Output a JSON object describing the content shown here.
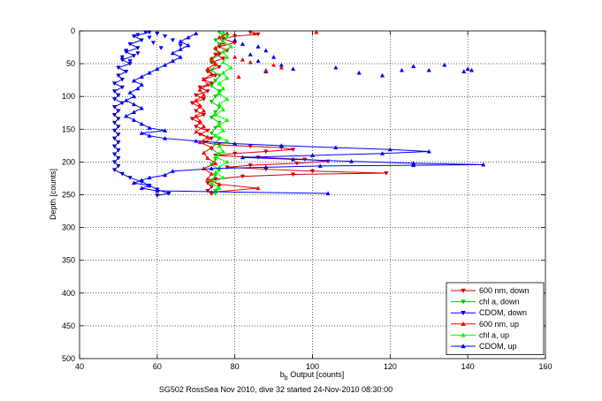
{
  "chart_data": {
    "type": "line",
    "title": "",
    "xlabel_main": "b",
    "xlabel_sub": "b",
    "xlabel_rest": " Output [counts]",
    "ylabel": "Depth [counts]",
    "caption": "SG502 RossSea Nov 2010, dive 32 started 24-Nov-2010 08:30:00",
    "xlim": [
      40,
      160
    ],
    "ylim": [
      0,
      500
    ],
    "y_reversed": true,
    "xticks": [
      40,
      60,
      80,
      100,
      120,
      140,
      160
    ],
    "yticks": [
      0,
      50,
      100,
      150,
      200,
      250,
      300,
      350,
      400,
      450,
      500
    ],
    "grid": true,
    "legend_position": "bottom-right",
    "colors": {
      "red": "#ff0000",
      "green": "#00ff00",
      "blue": "#0000ff"
    },
    "series": [
      {
        "name": "600 nm, down",
        "color": "#cc0000",
        "marker": "triangle-down",
        "points": [
          [
            84,
            2
          ],
          [
            86,
            5
          ],
          [
            80,
            8
          ],
          [
            77,
            12
          ],
          [
            80,
            18
          ],
          [
            76,
            24
          ],
          [
            78,
            30
          ],
          [
            75,
            36
          ],
          [
            77,
            42
          ],
          [
            74,
            48
          ],
          [
            76,
            55
          ],
          [
            73,
            62
          ],
          [
            75,
            68
          ],
          [
            72,
            74
          ],
          [
            74,
            80
          ],
          [
            71,
            86
          ],
          [
            73,
            92
          ],
          [
            70,
            98
          ],
          [
            72,
            104
          ],
          [
            69,
            110
          ],
          [
            71,
            116
          ],
          [
            70,
            122
          ],
          [
            72,
            128
          ],
          [
            69,
            134
          ],
          [
            71,
            140
          ],
          [
            70,
            146
          ],
          [
            73,
            152
          ],
          [
            71,
            158
          ],
          [
            74,
            164
          ],
          [
            72,
            170
          ],
          [
            76,
            174
          ],
          [
            84,
            176
          ],
          [
            92,
            178
          ],
          [
            95,
            181
          ],
          [
            88,
            184
          ],
          [
            80,
            187
          ],
          [
            75,
            190
          ],
          [
            86,
            193
          ],
          [
            98,
            196
          ],
          [
            104,
            199
          ],
          [
            96,
            202
          ],
          [
            84,
            205
          ],
          [
            78,
            208
          ],
          [
            88,
            211
          ],
          [
            100,
            214
          ],
          [
            119,
            217
          ],
          [
            95,
            219
          ],
          [
            82,
            222
          ],
          [
            75,
            226
          ],
          [
            73,
            232
          ],
          [
            74,
            238
          ],
          [
            73,
            244
          ],
          [
            74,
            248
          ]
        ]
      },
      {
        "name": "chl a, down",
        "color": "#00cc00",
        "marker": "triangle-down",
        "points": [
          [
            76,
            2
          ],
          [
            77,
            8
          ],
          [
            75,
            14
          ],
          [
            76,
            20
          ],
          [
            75,
            28
          ],
          [
            76,
            36
          ],
          [
            74,
            44
          ],
          [
            75,
            52
          ],
          [
            74,
            60
          ],
          [
            76,
            68
          ],
          [
            75,
            76
          ],
          [
            74,
            84
          ],
          [
            76,
            92
          ],
          [
            75,
            100
          ],
          [
            74,
            108
          ],
          [
            76,
            116
          ],
          [
            75,
            124
          ],
          [
            74,
            132
          ],
          [
            76,
            140
          ],
          [
            75,
            148
          ],
          [
            74,
            156
          ],
          [
            76,
            164
          ],
          [
            75,
            172
          ],
          [
            74,
            180
          ],
          [
            76,
            188
          ],
          [
            75,
            196
          ],
          [
            74,
            204
          ],
          [
            76,
            212
          ],
          [
            75,
            220
          ],
          [
            74,
            228
          ],
          [
            76,
            236
          ],
          [
            75,
            244
          ],
          [
            75,
            248
          ]
        ]
      },
      {
        "name": "CDOM, down",
        "color": "#0000cc",
        "marker": "triangle-down",
        "points": [
          [
            58,
            2
          ],
          [
            54,
            8
          ],
          [
            56,
            14
          ],
          [
            53,
            20
          ],
          [
            55,
            26
          ],
          [
            52,
            32
          ],
          [
            54,
            38
          ],
          [
            51,
            44
          ],
          [
            53,
            50
          ],
          [
            50,
            56
          ],
          [
            52,
            62
          ],
          [
            50,
            68
          ],
          [
            51,
            74
          ],
          [
            49,
            80
          ],
          [
            51,
            86
          ],
          [
            49,
            92
          ],
          [
            50,
            98
          ],
          [
            49,
            104
          ],
          [
            51,
            110
          ],
          [
            49,
            116
          ],
          [
            50,
            122
          ],
          [
            49,
            128
          ],
          [
            50,
            134
          ],
          [
            49,
            140
          ],
          [
            50,
            146
          ],
          [
            49,
            152
          ],
          [
            50,
            158
          ],
          [
            49,
            164
          ],
          [
            50,
            170
          ],
          [
            49,
            176
          ],
          [
            50,
            182
          ],
          [
            49,
            188
          ],
          [
            50,
            194
          ],
          [
            49,
            200
          ],
          [
            50,
            206
          ],
          [
            49,
            212
          ],
          [
            51,
            218
          ],
          [
            53,
            224
          ],
          [
            56,
            230
          ],
          [
            58,
            236
          ],
          [
            60,
            242
          ],
          [
            63,
            248
          ],
          [
            60,
            251
          ]
        ]
      },
      {
        "name": "600 nm, up",
        "color": "#ff0000",
        "marker": "triangle-up",
        "points": [
          [
            74,
            246
          ],
          [
            86,
            240
          ],
          [
            76,
            234
          ],
          [
            73,
            226
          ],
          [
            74,
            218
          ],
          [
            72,
            210
          ],
          [
            75,
            202
          ],
          [
            73,
            194
          ],
          [
            72,
            186
          ],
          [
            74,
            178
          ],
          [
            71,
            170
          ],
          [
            73,
            162
          ],
          [
            70,
            154
          ],
          [
            72,
            146
          ],
          [
            71,
            138
          ],
          [
            70,
            130
          ],
          [
            72,
            122
          ],
          [
            71,
            114
          ],
          [
            70,
            106
          ],
          [
            72,
            98
          ],
          [
            71,
            90
          ],
          [
            73,
            82
          ],
          [
            72,
            74
          ],
          [
            74,
            66
          ],
          [
            73,
            58
          ],
          [
            75,
            50
          ],
          [
            74,
            42
          ],
          [
            76,
            34
          ],
          [
            75,
            26
          ],
          [
            77,
            18
          ],
          [
            76,
            10
          ],
          [
            78,
            4
          ]
        ]
      },
      {
        "name": "chl a, up",
        "color": "#00ff00",
        "marker": "triangle-up",
        "points": [
          [
            75,
            246
          ],
          [
            76,
            240
          ],
          [
            74,
            232
          ],
          [
            77,
            224
          ],
          [
            75,
            216
          ],
          [
            76,
            208
          ],
          [
            78,
            200
          ],
          [
            75,
            192
          ],
          [
            77,
            184
          ],
          [
            76,
            176
          ],
          [
            78,
            168
          ],
          [
            75,
            160
          ],
          [
            77,
            152
          ],
          [
            76,
            144
          ],
          [
            78,
            136
          ],
          [
            75,
            128
          ],
          [
            77,
            120
          ],
          [
            76,
            112
          ],
          [
            78,
            104
          ],
          [
            76,
            96
          ],
          [
            77,
            88
          ],
          [
            76,
            80
          ],
          [
            78,
            72
          ],
          [
            77,
            64
          ],
          [
            79,
            56
          ],
          [
            77,
            48
          ],
          [
            78,
            40
          ],
          [
            77,
            32
          ],
          [
            79,
            24
          ],
          [
            77,
            16
          ],
          [
            78,
            8
          ],
          [
            77,
            2
          ]
        ]
      },
      {
        "name": "CDOM, up",
        "color": "#0000ff",
        "marker": "triangle-up",
        "points": [
          [
            104,
            248
          ],
          [
            60,
            244
          ],
          [
            56,
            240
          ],
          [
            58,
            236
          ],
          [
            54,
            232
          ],
          [
            56,
            228
          ],
          [
            58,
            224
          ],
          [
            62,
            220
          ],
          [
            64,
            214
          ],
          [
            74,
            210
          ],
          [
            88,
            208
          ],
          [
            102,
            206
          ],
          [
            126,
            205
          ],
          [
            144,
            204
          ],
          [
            126,
            202
          ],
          [
            110,
            199
          ],
          [
            95,
            196
          ],
          [
            82,
            193
          ],
          [
            100,
            190
          ],
          [
            118,
            187
          ],
          [
            130,
            184
          ],
          [
            120,
            181
          ],
          [
            106,
            178
          ],
          [
            92,
            175
          ],
          [
            80,
            172
          ],
          [
            70,
            168
          ],
          [
            62,
            164
          ],
          [
            58,
            160
          ],
          [
            56,
            156
          ],
          [
            62,
            152
          ],
          [
            58,
            148
          ],
          [
            56,
            142
          ],
          [
            54,
            136
          ],
          [
            52,
            130
          ],
          [
            54,
            124
          ],
          [
            56,
            118
          ],
          [
            54,
            112
          ],
          [
            52,
            106
          ],
          [
            54,
            100
          ],
          [
            53,
            94
          ],
          [
            55,
            88
          ],
          [
            56,
            82
          ],
          [
            54,
            76
          ],
          [
            56,
            70
          ],
          [
            58,
            64
          ],
          [
            60,
            58
          ],
          [
            62,
            52
          ],
          [
            64,
            46
          ],
          [
            66,
            40
          ],
          [
            64,
            34
          ],
          [
            66,
            28
          ],
          [
            68,
            22
          ],
          [
            66,
            16
          ],
          [
            68,
            10
          ],
          [
            70,
            4
          ]
        ]
      },
      {
        "name": "",
        "color": "#0000ff",
        "marker": "triangle-up",
        "scatter_only": true,
        "points": [
          [
            80,
            14
          ],
          [
            82,
            20
          ],
          [
            86,
            24
          ],
          [
            88,
            30
          ],
          [
            84,
            36
          ],
          [
            90,
            40
          ],
          [
            86,
            46
          ],
          [
            92,
            52
          ],
          [
            95,
            58
          ],
          [
            88,
            62
          ],
          [
            106,
            56
          ],
          [
            112,
            64
          ],
          [
            118,
            68
          ],
          [
            123,
            60
          ],
          [
            126,
            54
          ],
          [
            130,
            60
          ],
          [
            134,
            52
          ],
          [
            139,
            62
          ],
          [
            140,
            58
          ],
          [
            141,
            60
          ]
        ]
      },
      {
        "name": "",
        "color": "#0000ff",
        "marker": "triangle-down",
        "scatter_only": true,
        "points": [
          [
            57,
            2
          ],
          [
            60,
            4
          ],
          [
            55,
            6
          ],
          [
            62,
            8
          ],
          [
            58,
            10
          ],
          [
            64,
            14
          ],
          [
            59,
            18
          ],
          [
            66,
            22
          ],
          [
            61,
            26
          ],
          [
            52,
            30
          ],
          [
            55,
            34
          ],
          [
            51,
            40
          ],
          [
            53,
            46
          ]
        ]
      },
      {
        "name": "",
        "color": "#ff0000",
        "marker": "triangle-up",
        "scatter_only": true,
        "points": [
          [
            101,
            2
          ],
          [
            85,
            4
          ],
          [
            90,
            52
          ],
          [
            92,
            56
          ],
          [
            88,
            60
          ],
          [
            84,
            48
          ],
          [
            82,
            44
          ],
          [
            80,
            40
          ],
          [
            81,
            70
          ]
        ]
      }
    ]
  }
}
